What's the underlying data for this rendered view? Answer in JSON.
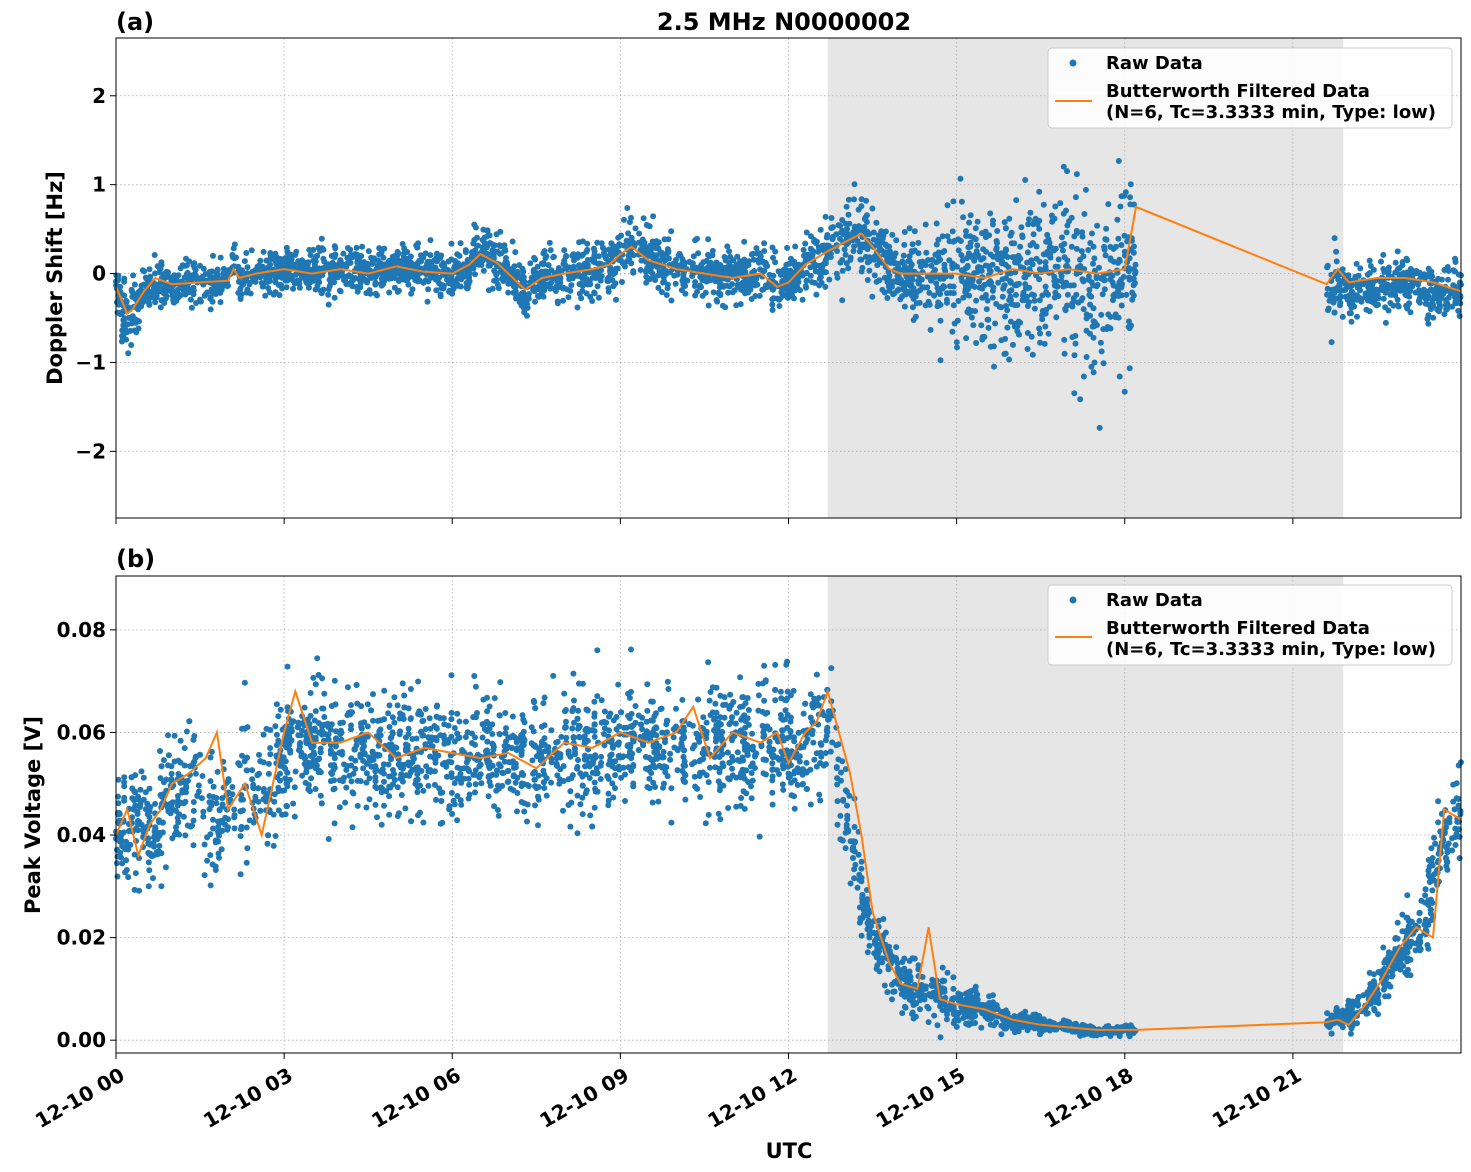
{
  "figure": {
    "title": "2.5 MHz N0000002",
    "xlabel": "UTC"
  },
  "chart_data": [
    {
      "type": "line",
      "panel_label": "(a)",
      "title": "2.5 MHz N0000002",
      "xlabel": "",
      "ylabel": "Doppler Shift [Hz]",
      "x_unit": "hours since 12-10 00:00 UTC",
      "xlim": [
        0,
        24
      ],
      "ylim": [
        -2.75,
        2.65
      ],
      "yticks": [
        -2,
        -1,
        0,
        1,
        2
      ],
      "ytick_labels": [
        "−2",
        "−1",
        "0",
        "1",
        "2"
      ],
      "xticks": [
        0,
        3,
        6,
        9,
        12,
        15,
        18,
        21
      ],
      "shaded_span": [
        12.7,
        21.9
      ],
      "grid": true,
      "legend": "top-right",
      "series": [
        {
          "name": "Raw Data",
          "kind": "scatter",
          "color": "#1f77b4",
          "x": [
            0,
            0.1,
            0.2,
            0.3,
            0.5,
            0.7,
            1,
            1.5,
            2,
            2.1,
            2.2,
            2.5,
            3,
            3.5,
            4,
            4.5,
            5,
            5.5,
            6,
            6.3,
            6.5,
            6.8,
            7,
            7.3,
            7.6,
            8,
            8.5,
            8.8,
            9,
            9.2,
            9.5,
            10,
            10.5,
            11,
            11.5,
            11.8,
            12,
            12.3,
            12.7,
            13,
            13.3,
            13.5,
            13.8,
            14,
            14.5,
            15,
            15.5,
            16,
            16.5,
            17,
            17.5,
            18,
            18.2,
            21.6,
            21.8,
            22,
            22.5,
            23,
            23.5,
            24
          ],
          "y": [
            -0.1,
            -0.35,
            -0.45,
            -0.4,
            -0.25,
            -0.1,
            -0.15,
            -0.1,
            -0.1,
            0.2,
            -0.1,
            0.0,
            0.05,
            0.0,
            0.05,
            0.0,
            0.05,
            0.05,
            0.0,
            0.1,
            0.25,
            0.15,
            0.0,
            -0.2,
            -0.05,
            0.0,
            0.05,
            0.1,
            0.25,
            0.3,
            0.2,
            0.05,
            0.0,
            -0.05,
            0.0,
            -0.15,
            -0.1,
            0.1,
            0.25,
            0.35,
            0.45,
            0.3,
            0.1,
            0.0,
            0.0,
            0.0,
            -0.05,
            0.0,
            0.0,
            0.05,
            0.0,
            0.05,
            0.2,
            -0.1,
            -0.15,
            -0.2,
            -0.15,
            -0.1,
            -0.2,
            -0.25
          ],
          "spread": [
            0.3,
            0.4,
            0.45,
            0.4,
            0.3,
            0.3,
            0.25,
            0.25,
            0.25,
            0.35,
            0.25,
            0.25,
            0.25,
            0.25,
            0.25,
            0.25,
            0.25,
            0.25,
            0.25,
            0.3,
            0.3,
            0.3,
            0.3,
            0.3,
            0.3,
            0.3,
            0.3,
            0.35,
            0.35,
            0.4,
            0.35,
            0.3,
            0.3,
            0.3,
            0.3,
            0.3,
            0.3,
            0.3,
            0.35,
            0.4,
            0.45,
            0.45,
            0.35,
            0.35,
            0.5,
            0.7,
            0.85,
            0.9,
            1.0,
            1.0,
            1.0,
            1.0,
            0.9,
            0.5,
            0.45,
            0.35,
            0.3,
            0.3,
            0.3,
            0.3
          ]
        },
        {
          "name": "Butterworth Filtered Data\n(N=6, Tc=3.3333 min, Type: low)",
          "kind": "line",
          "color": "#ff7f0e",
          "x": [
            0,
            0.1,
            0.2,
            0.3,
            0.5,
            0.7,
            1,
            1.5,
            2,
            2.1,
            2.2,
            2.5,
            3,
            3.5,
            4,
            4.5,
            5,
            5.5,
            6,
            6.3,
            6.5,
            6.8,
            7,
            7.3,
            7.6,
            8,
            8.5,
            8.8,
            9,
            9.2,
            9.5,
            10,
            10.5,
            11,
            11.5,
            11.8,
            12,
            12.3,
            12.7,
            13,
            13.3,
            13.5,
            13.8,
            14,
            14.5,
            15,
            15.5,
            16,
            16.5,
            17,
            17.5,
            18,
            18.2,
            21.6,
            21.8,
            22,
            22.5,
            23,
            23.5,
            24
          ],
          "y": [
            -0.15,
            -0.3,
            -0.45,
            -0.4,
            -0.2,
            -0.05,
            -0.12,
            -0.1,
            -0.08,
            0.05,
            -0.05,
            0.0,
            0.05,
            0.0,
            0.05,
            0.0,
            0.08,
            0.02,
            0.0,
            0.1,
            0.22,
            0.12,
            0.0,
            -0.18,
            -0.05,
            0.0,
            0.05,
            0.1,
            0.22,
            0.3,
            0.15,
            0.05,
            0.0,
            -0.05,
            0.0,
            -0.15,
            -0.1,
            0.1,
            0.25,
            0.35,
            0.45,
            0.3,
            0.05,
            0.0,
            0.0,
            0.0,
            -0.05,
            0.05,
            0.0,
            0.05,
            0.0,
            0.05,
            0.75,
            -0.12,
            0.05,
            -0.1,
            -0.05,
            -0.05,
            -0.1,
            -0.2
          ]
        }
      ]
    },
    {
      "type": "line",
      "panel_label": "(b)",
      "title": "",
      "xlabel": "UTC",
      "ylabel": "Peak Voltage [V]",
      "x_unit": "hours since 12-10 00:00 UTC",
      "xlim": [
        0,
        24
      ],
      "ylim": [
        -0.0025,
        0.0905
      ],
      "yticks": [
        0.0,
        0.02,
        0.04,
        0.06,
        0.08
      ],
      "ytick_labels": [
        "0.00",
        "0.02",
        "0.04",
        "0.06",
        "0.08"
      ],
      "xticks": [
        0,
        3,
        6,
        9,
        12,
        15,
        18,
        21
      ],
      "xtick_labels": [
        "12-10 00",
        "12-10 03",
        "12-10 06",
        "12-10 09",
        "12-10 12",
        "12-10 15",
        "12-10 18",
        "12-10 21"
      ],
      "shaded_span": [
        12.7,
        21.9
      ],
      "grid": true,
      "legend": "top-right",
      "series": [
        {
          "name": "Raw Data",
          "kind": "scatter",
          "color": "#1f77b4",
          "x": [
            0,
            0.3,
            0.6,
            1,
            1.3,
            1.6,
            2,
            2.3,
            2.6,
            3,
            3.5,
            4,
            4.5,
            5,
            5.5,
            6,
            6.5,
            7,
            7.5,
            8,
            8.5,
            9,
            9.5,
            10,
            10.5,
            11,
            11.5,
            12,
            12.3,
            12.7,
            13,
            13.3,
            13.6,
            14,
            14.3,
            14.6,
            15,
            15.5,
            16,
            16.5,
            17,
            17.5,
            18,
            18.2,
            21.6,
            21.8,
            22,
            22.3,
            22.6,
            23,
            23.3,
            23.6,
            24
          ],
          "y": [
            0.04,
            0.045,
            0.04,
            0.048,
            0.05,
            0.045,
            0.045,
            0.05,
            0.047,
            0.055,
            0.058,
            0.057,
            0.056,
            0.056,
            0.056,
            0.055,
            0.056,
            0.055,
            0.054,
            0.057,
            0.056,
            0.058,
            0.058,
            0.057,
            0.058,
            0.058,
            0.058,
            0.058,
            0.056,
            0.062,
            0.045,
            0.028,
            0.018,
            0.012,
            0.01,
            0.009,
            0.007,
            0.006,
            0.004,
            0.003,
            0.0025,
            0.002,
            0.002,
            0.002,
            0.004,
            0.004,
            0.005,
            0.008,
            0.012,
            0.018,
            0.022,
            0.038,
            0.045
          ],
          "spread": [
            0.01,
            0.012,
            0.012,
            0.012,
            0.012,
            0.012,
            0.013,
            0.013,
            0.013,
            0.012,
            0.012,
            0.012,
            0.012,
            0.012,
            0.012,
            0.012,
            0.012,
            0.012,
            0.012,
            0.012,
            0.012,
            0.012,
            0.012,
            0.012,
            0.012,
            0.012,
            0.012,
            0.012,
            0.012,
            0.012,
            0.01,
            0.008,
            0.006,
            0.005,
            0.005,
            0.005,
            0.004,
            0.003,
            0.002,
            0.0015,
            0.001,
            0.001,
            0.001,
            0.001,
            0.002,
            0.002,
            0.003,
            0.004,
            0.005,
            0.006,
            0.007,
            0.01,
            0.012
          ]
        },
        {
          "name": "Butterworth Filtered Data\n(N=6, Tc=3.3333 min, Type: low)",
          "kind": "line",
          "color": "#ff7f0e",
          "x": [
            0,
            0.2,
            0.4,
            0.6,
            0.8,
            1,
            1.3,
            1.6,
            1.8,
            2,
            2.3,
            2.6,
            2.8,
            3,
            3.2,
            3.5,
            4,
            4.5,
            5,
            5.5,
            6,
            6.5,
            7,
            7.5,
            8,
            8.5,
            9,
            9.5,
            10,
            10.3,
            10.6,
            11,
            11.5,
            11.8,
            12,
            12.3,
            12.5,
            12.7,
            12.9,
            13.1,
            13.3,
            13.5,
            13.8,
            14,
            14.3,
            14.5,
            14.7,
            15,
            15.5,
            16,
            16.5,
            17,
            17.5,
            18,
            18.2,
            21.6,
            21.8,
            22,
            22.3,
            22.6,
            22.9,
            23.2,
            23.5,
            23.7,
            24
          ],
          "y": [
            0.04,
            0.045,
            0.036,
            0.042,
            0.045,
            0.05,
            0.052,
            0.055,
            0.06,
            0.045,
            0.05,
            0.04,
            0.05,
            0.06,
            0.068,
            0.058,
            0.058,
            0.06,
            0.055,
            0.057,
            0.056,
            0.055,
            0.056,
            0.053,
            0.058,
            0.057,
            0.06,
            0.058,
            0.06,
            0.065,
            0.055,
            0.06,
            0.058,
            0.06,
            0.054,
            0.06,
            0.062,
            0.068,
            0.06,
            0.052,
            0.04,
            0.025,
            0.015,
            0.011,
            0.01,
            0.022,
            0.008,
            0.007,
            0.006,
            0.004,
            0.003,
            0.0025,
            0.002,
            0.002,
            0.002,
            0.0035,
            0.004,
            0.003,
            0.007,
            0.012,
            0.018,
            0.022,
            0.02,
            0.045,
            0.043
          ]
        }
      ]
    }
  ]
}
